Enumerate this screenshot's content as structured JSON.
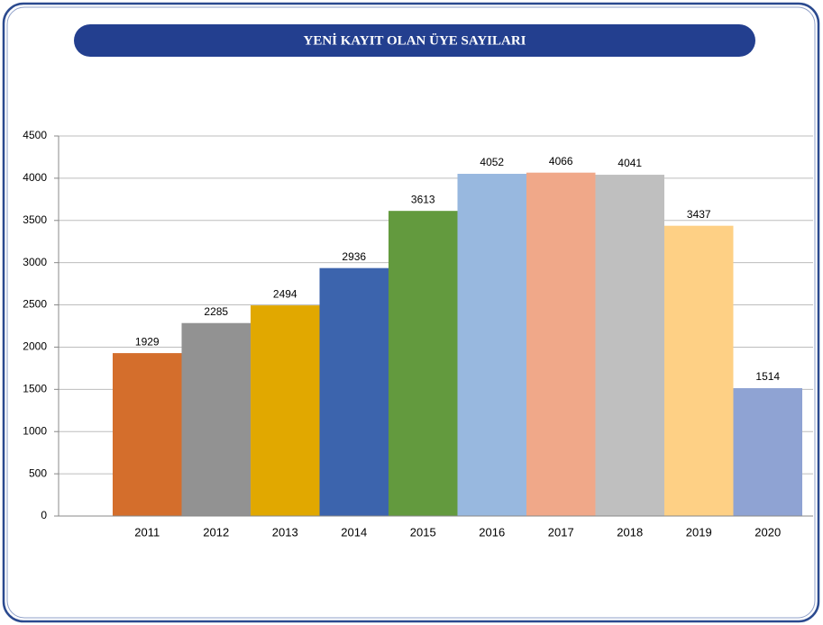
{
  "chart_data": {
    "type": "bar",
    "title": "YENİ KAYIT OLAN ÜYE SAYILARI",
    "categories": [
      "2011",
      "2012",
      "2013",
      "2014",
      "2015",
      "2016",
      "2017",
      "2018",
      "2019",
      "2020"
    ],
    "values": [
      1929,
      2285,
      2494,
      2936,
      3613,
      4052,
      4066,
      4041,
      3437,
      1514
    ],
    "colors": [
      "#d46e2c",
      "#929292",
      "#e1a800",
      "#3c64ad",
      "#639a3e",
      "#98b8df",
      "#f0a889",
      "#bfbfbf",
      "#fed085",
      "#8fa3d3"
    ],
    "ylim": [
      0,
      4500
    ],
    "yticks": [
      0,
      500,
      1000,
      1500,
      2000,
      2500,
      3000,
      3500,
      4000,
      4500
    ],
    "grid": true
  }
}
